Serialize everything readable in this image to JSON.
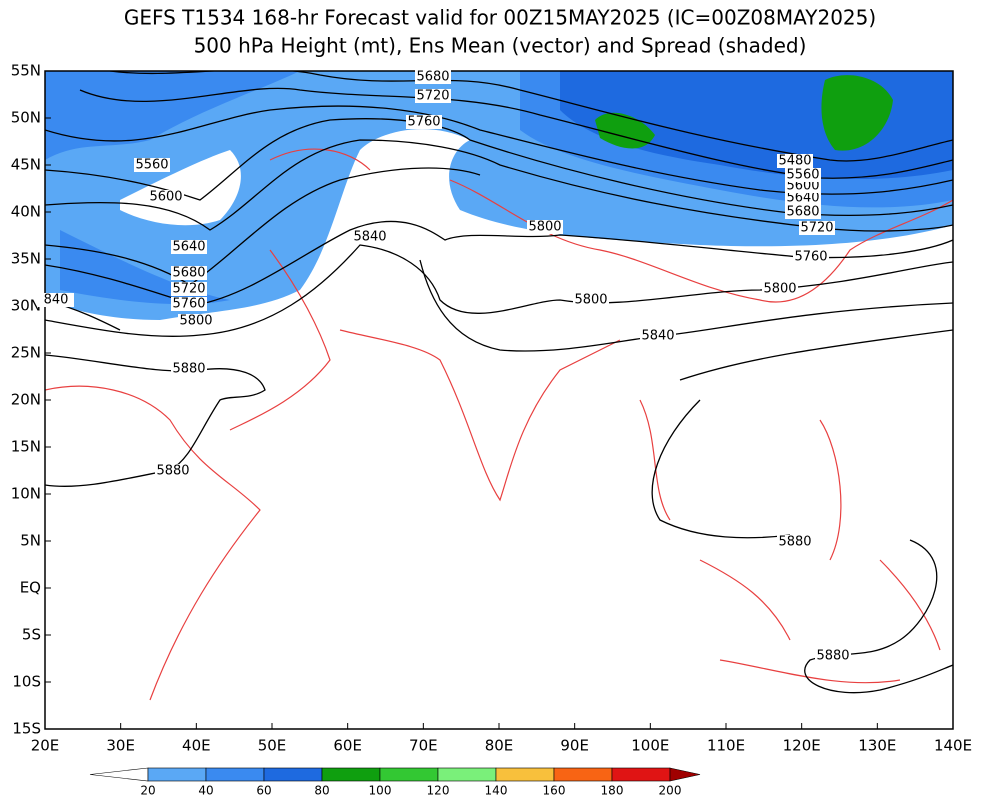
{
  "title": [
    "GEFS T1534 168-hr Forecast valid for 00Z15MAY2025 (IC=00Z08MAY2025)",
    "500 hPa Height (mt), Ens Mean (vector) and Spread (shaded)"
  ],
  "map": {
    "lon_labels": [
      "20E",
      "30E",
      "40E",
      "50E",
      "60E",
      "70E",
      "80E",
      "90E",
      "100E",
      "110E",
      "120E",
      "130E",
      "140E"
    ],
    "lat_labels": [
      "55N",
      "50N",
      "45N",
      "40N",
      "35N",
      "30N",
      "25N",
      "20N",
      "15N",
      "10N",
      "5N",
      "EQ",
      "5S",
      "10S",
      "15S"
    ],
    "contour_labels": [
      5680,
      5720,
      5760,
      5560,
      5600,
      5640,
      5680,
      5720,
      5760,
      5800,
      840,
      5840,
      5800,
      5800,
      5840,
      5880,
      5880,
      5880,
      5880,
      5800,
      5760,
      5720,
      5680,
      5640,
      5600,
      5560,
      5480
    ]
  },
  "colorbar": {
    "labels": [
      20,
      40,
      60,
      80,
      100,
      120,
      140,
      160,
      180,
      200
    ],
    "colors": [
      "#ffffff",
      "#5aa8f5",
      "#3a8af0",
      "#1e6ae0",
      "#0f9f0f",
      "#33c833",
      "#7af07a",
      "#f8c03c",
      "#f86414",
      "#e01414",
      "#a00000"
    ]
  }
}
